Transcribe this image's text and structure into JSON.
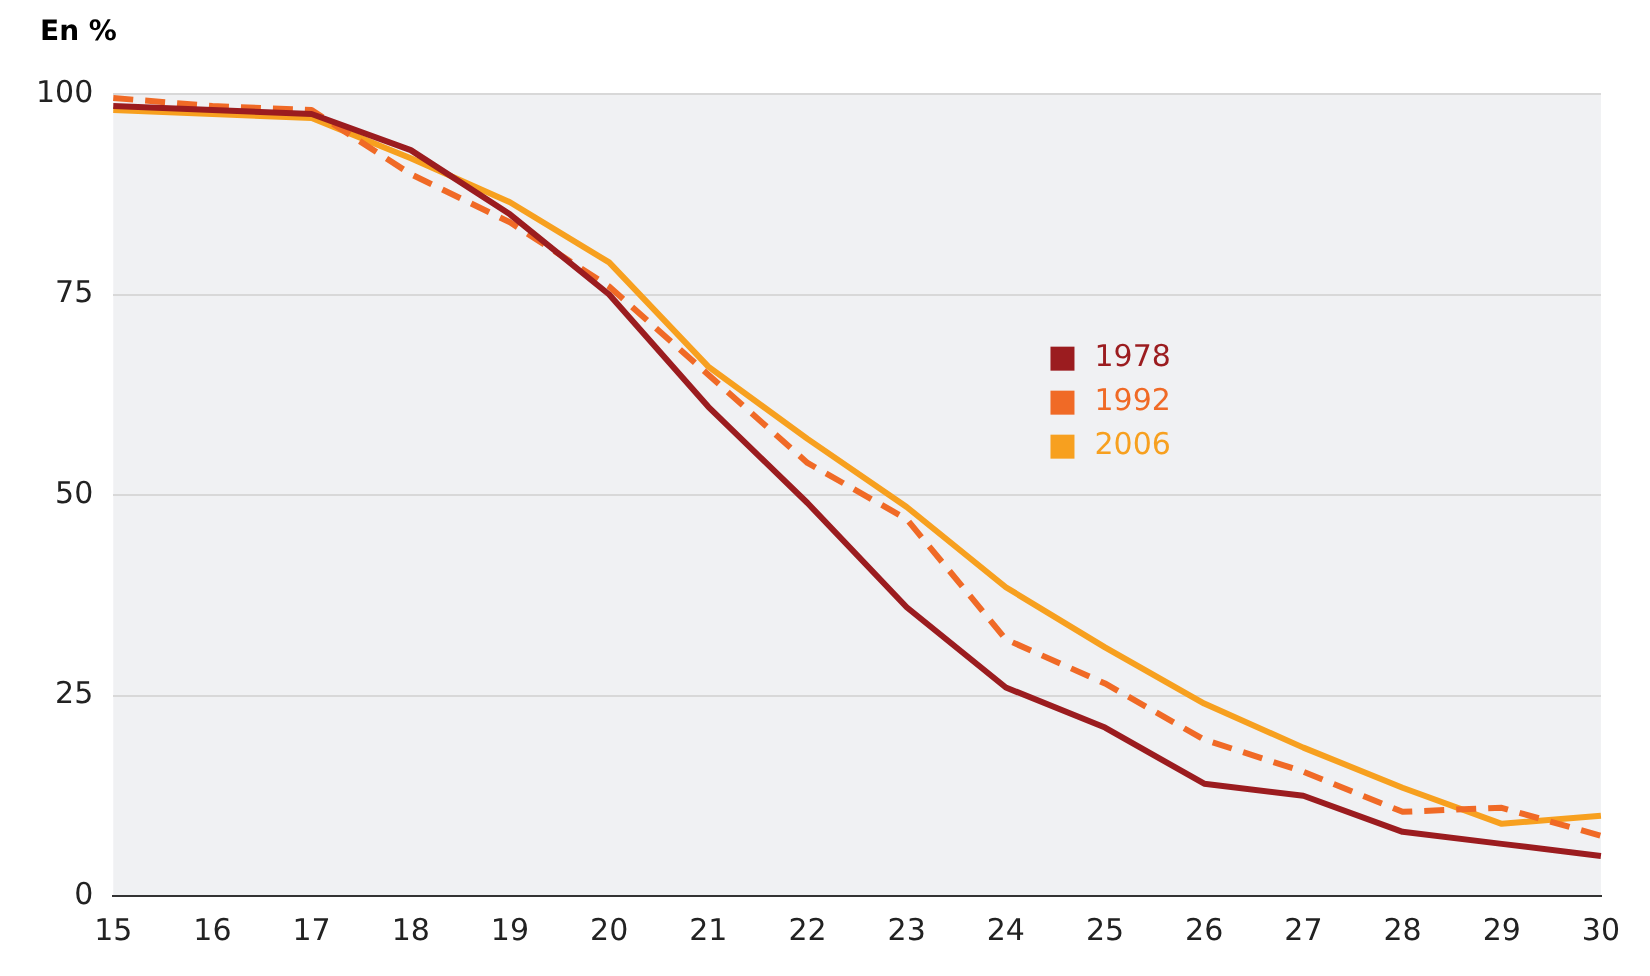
{
  "chart_data": {
    "type": "line",
    "ylabel": "En %",
    "categories": [
      "15",
      "16",
      "17",
      "18",
      "19",
      "20",
      "21",
      "22",
      "23",
      "24",
      "25",
      "26",
      "27",
      "28",
      "29",
      "30"
    ],
    "series": [
      {
        "name": "1978",
        "color": "#9b1c1f",
        "values": [
          98.5,
          98,
          97.5,
          93,
          85,
          75,
          61,
          49,
          36,
          26,
          21,
          14,
          12.5,
          8,
          6.5,
          5
        ]
      },
      {
        "name": "1992",
        "color": "#f06a26",
        "line_style": "dashed",
        "values": [
          99.5,
          98.5,
          98,
          90,
          84,
          76,
          65,
          54,
          47,
          32,
          26.5,
          19.5,
          15.5,
          10.5,
          11,
          7.5
        ]
      },
      {
        "name": "2006",
        "color": "#f7a01f",
        "values": [
          98,
          97.5,
          97,
          92,
          86.5,
          79,
          66,
          57,
          48.5,
          38.5,
          31,
          24,
          18.5,
          13.5,
          9,
          10
        ]
      }
    ],
    "ylim": [
      0,
      100
    ],
    "yticks": [
      0,
      25,
      50,
      75,
      100
    ],
    "grid": "y",
    "legend": "right",
    "marker": "none"
  }
}
